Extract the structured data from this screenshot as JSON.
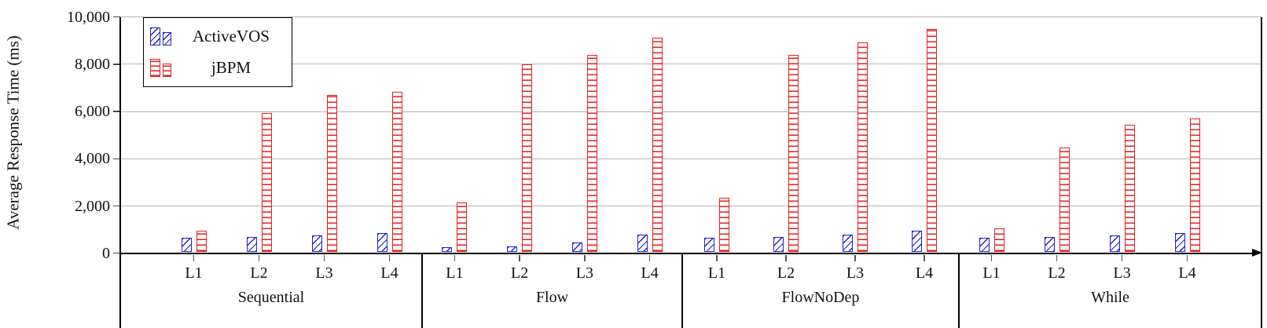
{
  "y_axis": {
    "title": "Average Response Time (ms)",
    "tick_values": [
      0,
      2000,
      4000,
      6000,
      8000,
      10000
    ],
    "tick_labels": [
      "0",
      "2,000",
      "4,000",
      "6,000",
      "8,000",
      "10,000"
    ]
  },
  "legend": {
    "position": "top-left",
    "entries": [
      {
        "label": "ActiveVOS",
        "color": "#2121cc",
        "hatch": "diagonal"
      },
      {
        "label": "jBPM",
        "color": "#e32020",
        "hatch": "horizontal"
      }
    ]
  },
  "colors": {
    "activevos_blue": "#2121cc",
    "jbpm_red": "#e32020",
    "grid_gray": "#b3b3b3",
    "axis_black": "#000000"
  },
  "chart_data": {
    "type": "bar",
    "title": "",
    "xlabel": "",
    "ylabel": "Average Response Time (ms)",
    "ylim": [
      0,
      10000
    ],
    "grid": "horizontal",
    "legend_position": "top-left",
    "groups": [
      "Sequential",
      "Flow",
      "FlowNoDep",
      "While"
    ],
    "categories": [
      "L1",
      "L2",
      "L3",
      "L4"
    ],
    "series": [
      {
        "name": "ActiveVOS",
        "values": {
          "Sequential": [
            600,
            650,
            700,
            800
          ],
          "Flow": [
            200,
            250,
            400,
            750
          ],
          "FlowNoDep": [
            600,
            650,
            750,
            900
          ],
          "While": [
            600,
            650,
            700,
            800
          ]
        }
      },
      {
        "name": "jBPM",
        "values": {
          "Sequential": [
            900,
            5900,
            6650,
            6800
          ],
          "Flow": [
            2100,
            7950,
            8350,
            9100
          ],
          "FlowNoDep": [
            2300,
            8350,
            8900,
            9450
          ],
          "While": [
            1000,
            4450,
            5400,
            5650
          ]
        }
      }
    ]
  }
}
